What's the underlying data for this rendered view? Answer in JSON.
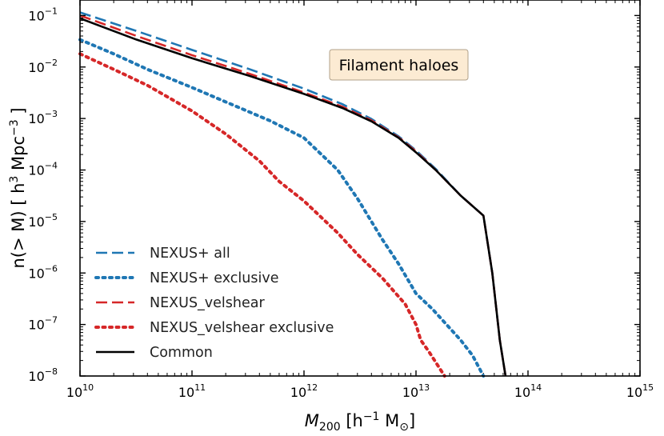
{
  "chart_data": {
    "type": "line",
    "title": "",
    "xlabel": {
      "base": "M",
      "sub": "200",
      "unit_pre": " [h",
      "unit_sup": "−1",
      "unit_post": " M",
      "unit_sub": "⊙",
      "unit_close": "]"
    },
    "ylabel": {
      "pre": "n(> M) [ h",
      "sup1": "3",
      "mid": " Mpc",
      "sup2": "−3",
      "post": " ]"
    },
    "xscale": "log",
    "yscale": "log",
    "xlim": [
      10000000000.0,
      1000000000000000.0
    ],
    "ylim": [
      1e-08,
      0.2
    ],
    "x_ticks": [
      {
        "base": "10",
        "exp": "10"
      },
      {
        "base": "10",
        "exp": "11"
      },
      {
        "base": "10",
        "exp": "12"
      },
      {
        "base": "10",
        "exp": "13"
      },
      {
        "base": "10",
        "exp": "14"
      },
      {
        "base": "10",
        "exp": "15"
      }
    ],
    "y_ticks": [
      {
        "base": "10",
        "exp": "−1"
      },
      {
        "base": "10",
        "exp": "−2"
      },
      {
        "base": "10",
        "exp": "−3"
      },
      {
        "base": "10",
        "exp": "−4"
      },
      {
        "base": "10",
        "exp": "−5"
      },
      {
        "base": "10",
        "exp": "−6"
      },
      {
        "base": "10",
        "exp": "−7"
      },
      {
        "base": "10",
        "exp": "−8"
      }
    ],
    "annotation": "Filament haloes",
    "legend_position": "lower-left",
    "series": [
      {
        "name": "NEXUS+ all",
        "color": "#1f77b4",
        "linestyle": "dashed",
        "points": [
          [
            10000000000.0,
            0.115
          ],
          [
            32000000000.0,
            0.05
          ],
          [
            100000000000.0,
            0.0215
          ],
          [
            320000000000.0,
            0.0092
          ],
          [
            1000000000000.0,
            0.0038
          ],
          [
            2200000000000.0,
            0.0019
          ],
          [
            4000000000000.0,
            0.00098
          ],
          [
            7000000000000.0,
            0.00045
          ],
          [
            10000000000000.0,
            0.00024
          ],
          [
            15000000000000.0,
            0.000105
          ],
          [
            25000000000000.0,
            3.2e-05
          ],
          [
            40000000000000.0,
            1.3e-05
          ],
          [
            48000000000000.0,
            1e-06
          ],
          [
            56000000000000.0,
            5e-08
          ],
          [
            63000000000000.0,
            1e-08
          ]
        ]
      },
      {
        "name": "NEXUS+ exclusive",
        "color": "#1f77b4",
        "linestyle": "dotted",
        "points": [
          [
            10000000000.0,
            0.034
          ],
          [
            20000000000.0,
            0.018
          ],
          [
            40000000000.0,
            0.009
          ],
          [
            100000000000.0,
            0.004
          ],
          [
            200000000000.0,
            0.0021
          ],
          [
            500000000000.0,
            0.0009
          ],
          [
            1000000000000.0,
            0.00042
          ],
          [
            2000000000000.0,
            0.0001
          ],
          [
            3000000000000.0,
            2.8e-05
          ],
          [
            5000000000000.0,
            4.5e-06
          ],
          [
            7000000000000.0,
            1.5e-06
          ],
          [
            10000000000000.0,
            4e-07
          ],
          [
            14000000000000.0,
            2e-07
          ],
          [
            25000000000000.0,
            5e-08
          ],
          [
            32000000000000.0,
            2.5e-08
          ],
          [
            40000000000000.0,
            1e-08
          ]
        ]
      },
      {
        "name": "NEXUS_velshear",
        "color": "#d62728",
        "linestyle": "dashed",
        "points": [
          [
            10000000000.0,
            0.1
          ],
          [
            32000000000.0,
            0.04
          ],
          [
            100000000000.0,
            0.017
          ],
          [
            320000000000.0,
            0.0075
          ],
          [
            1000000000000.0,
            0.0032
          ],
          [
            2200000000000.0,
            0.0017
          ],
          [
            4000000000000.0,
            0.00092
          ],
          [
            7000000000000.0,
            0.00043
          ],
          [
            10000000000000.0,
            0.00023
          ],
          [
            15000000000000.0,
            0.0001
          ],
          [
            25000000000000.0,
            3.2e-05
          ],
          [
            40000000000000.0,
            1.3e-05
          ],
          [
            48000000000000.0,
            1e-06
          ],
          [
            56000000000000.0,
            5e-08
          ],
          [
            63000000000000.0,
            1e-08
          ]
        ]
      },
      {
        "name": "NEXUS_velshear exclusive",
        "color": "#d62728",
        "linestyle": "dotted",
        "points": [
          [
            10000000000.0,
            0.018
          ],
          [
            20000000000.0,
            0.009
          ],
          [
            40000000000.0,
            0.0044
          ],
          [
            100000000000.0,
            0.0014
          ],
          [
            200000000000.0,
            0.0005
          ],
          [
            400000000000.0,
            0.00015
          ],
          [
            600000000000.0,
            6e-05
          ],
          [
            1000000000000.0,
            2.5e-05
          ],
          [
            2000000000000.0,
            6e-06
          ],
          [
            3000000000000.0,
            2.3e-06
          ],
          [
            5000000000000.0,
            8e-07
          ],
          [
            8000000000000.0,
            2.5e-07
          ],
          [
            10000000000000.0,
            1e-07
          ],
          [
            11000000000000.0,
            5e-08
          ],
          [
            13000000000000.0,
            3e-08
          ],
          [
            18000000000000.0,
            1e-08
          ]
        ]
      },
      {
        "name": "Common",
        "color": "#000000",
        "linestyle": "solid",
        "points": [
          [
            10000000000.0,
            0.088
          ],
          [
            32000000000.0,
            0.034
          ],
          [
            100000000000.0,
            0.0148
          ],
          [
            320000000000.0,
            0.0068
          ],
          [
            1000000000000.0,
            0.003
          ],
          [
            2200000000000.0,
            0.0016
          ],
          [
            4000000000000.0,
            0.00088
          ],
          [
            7000000000000.0,
            0.00042
          ],
          [
            10000000000000.0,
            0.00022
          ],
          [
            15000000000000.0,
            0.0001
          ],
          [
            25000000000000.0,
            3.2e-05
          ],
          [
            40000000000000.0,
            1.3e-05
          ],
          [
            48000000000000.0,
            1e-06
          ],
          [
            56000000000000.0,
            5e-08
          ],
          [
            63000000000000.0,
            1e-08
          ]
        ]
      }
    ]
  }
}
